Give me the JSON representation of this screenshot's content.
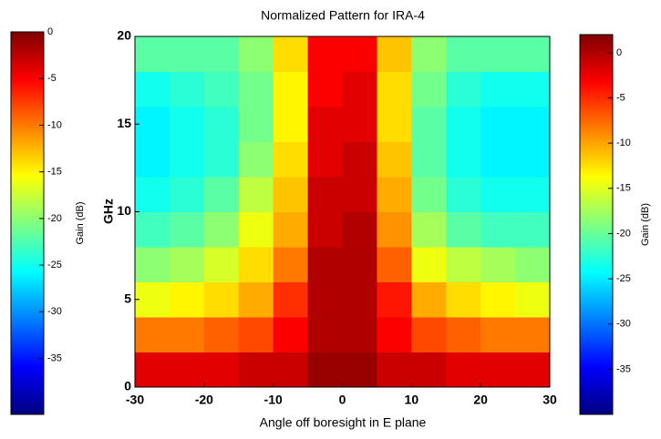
{
  "chart_data": {
    "type": "heatmap",
    "title": "Normalized Pattern for IRA-4",
    "xlabel": "Angle off boresight in E plane",
    "ylabel": "GHz",
    "colormap": "jet",
    "x": [
      -27.5,
      -22.5,
      -17.5,
      -12.5,
      -7.5,
      -2.5,
      2.5,
      7.5,
      12.5,
      17.5,
      22.5,
      27.5
    ],
    "y": [
      1,
      3,
      5,
      7,
      9,
      11,
      13,
      15,
      17,
      19
    ],
    "z": [
      [
        -4,
        -4,
        -4,
        -3,
        -3,
        -1,
        -1,
        -3,
        -3,
        -4,
        -4,
        -4
      ],
      [
        -10,
        -10,
        -9,
        -8,
        -5,
        -2,
        -2,
        -5,
        -8,
        -9,
        -10,
        -10
      ],
      [
        -16,
        -15,
        -14,
        -12,
        -7,
        -2,
        -2,
        -6,
        -12,
        -14,
        -15,
        -16
      ],
      [
        -20,
        -19,
        -17,
        -14,
        -10,
        -2,
        -2,
        -9,
        -16,
        -18,
        -19,
        -20
      ],
      [
        -23,
        -22,
        -20,
        -16,
        -12,
        -3,
        -2,
        -11,
        -19,
        -22,
        -23,
        -23
      ],
      [
        -25,
        -24,
        -22,
        -18,
        -13,
        -3,
        -3,
        -12,
        -21,
        -24,
        -25,
        -25
      ],
      [
        -26,
        -25,
        -24,
        -20,
        -14,
        -4,
        -3,
        -13,
        -22,
        -25,
        -26,
        -26
      ],
      [
        -26,
        -25,
        -24,
        -21,
        -15,
        -4,
        -4,
        -14,
        -22,
        -25,
        -26,
        -26
      ],
      [
        -25,
        -24,
        -23,
        -21,
        -15,
        -5,
        -4,
        -14,
        -21,
        -24,
        -25,
        -25
      ],
      [
        -22,
        -22,
        -22,
        -20,
        -14,
        -5,
        -5,
        -13,
        -20,
        -22,
        -22,
        -22
      ]
    ],
    "xlim": [
      -30,
      30
    ],
    "ylim": [
      0,
      20
    ],
    "xticks": [
      -30,
      -20,
      -10,
      0,
      10,
      20,
      30
    ],
    "yticks": [
      0,
      5,
      10,
      15,
      20
    ],
    "colorbars": [
      {
        "label": "Gain (dB)",
        "clim": [
          -41,
          0
        ],
        "ticks": [
          0,
          -5,
          -10,
          -15,
          -20,
          -25,
          -30,
          -35
        ]
      },
      {
        "label": "Gain (dB)",
        "clim": [
          -40,
          2
        ],
        "ticks": [
          0,
          -5,
          -10,
          -15,
          -20,
          -25,
          -30,
          -35
        ]
      }
    ]
  }
}
